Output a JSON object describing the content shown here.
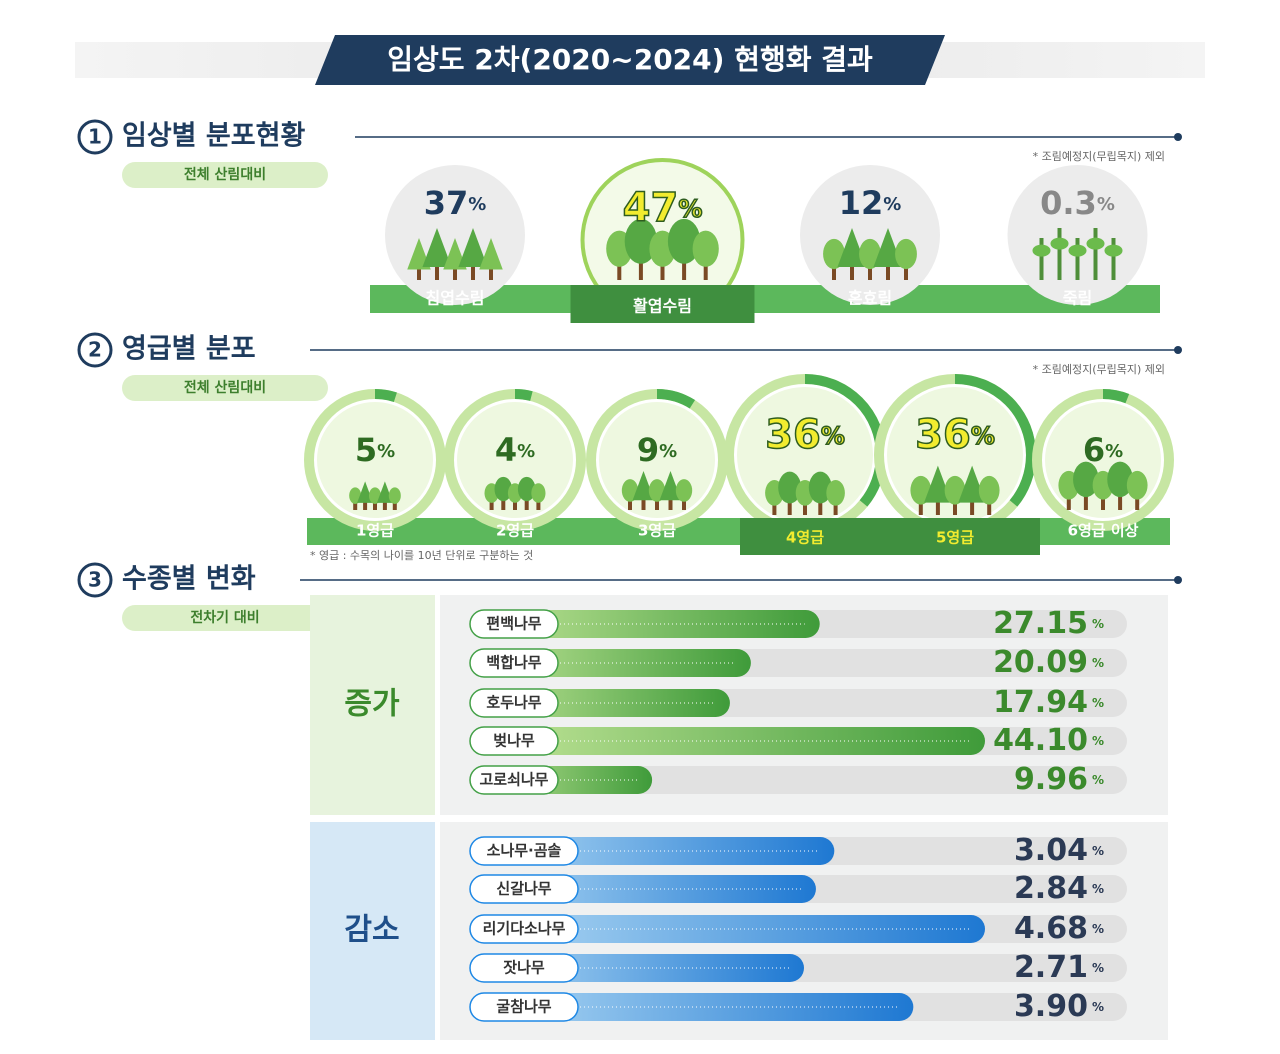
{
  "title": "임상도 2차(2020~2024) 현행화 결과",
  "unit": "%",
  "sections": [
    {
      "number": "1",
      "heading": "임상별 분포현황",
      "tag": "전체 산림대비",
      "note": "* 조림예정지(무립목지) 제외",
      "items": [
        {
          "label": "침엽수림",
          "value": 37
        },
        {
          "label": "활엽수림",
          "value": 47,
          "highlight": true
        },
        {
          "label": "혼효림",
          "value": 12
        },
        {
          "label": "죽림",
          "value": 0.3
        }
      ]
    },
    {
      "number": "2",
      "heading": "영급별 분포",
      "tag": "전체 산림대비",
      "note": "* 조림예정지(무립목지) 제외",
      "footnote": "* 영급 : 수목의 나이를 10년 단위로 구분하는 것",
      "items": [
        {
          "label": "1영급",
          "value": 5
        },
        {
          "label": "2영급",
          "value": 4
        },
        {
          "label": "3영급",
          "value": 9
        },
        {
          "label": "4영급",
          "value": 36,
          "highlight": true
        },
        {
          "label": "5영급",
          "value": 36,
          "highlight": true
        },
        {
          "label": "6영급 이상",
          "value": 6
        }
      ]
    },
    {
      "number": "3",
      "heading": "수종별 변화",
      "tag": "전차기 대비",
      "groups": [
        {
          "label": "증가",
          "color": "#43a047",
          "items": [
            {
              "label": "편백나무",
              "value": 27.15
            },
            {
              "label": "백합나무",
              "value": 20.09
            },
            {
              "label": "호두나무",
              "value": 17.94
            },
            {
              "label": "벚나무",
              "value": 44.1,
              "value_label": "44.10"
            },
            {
              "label": "고로쇠나무",
              "value": 9.96
            }
          ]
        },
        {
          "label": "감소",
          "color": "#1e88e5",
          "items": [
            {
              "label": "소나무·곰솔",
              "value": 3.04
            },
            {
              "label": "신갈나무",
              "value": 2.84
            },
            {
              "label": "리기다소나무",
              "value": 4.68
            },
            {
              "label": "잣나무",
              "value": 2.71
            },
            {
              "label": "굴참나무",
              "value": 3.9,
              "value_label": "3.90"
            }
          ]
        }
      ]
    }
  ]
}
